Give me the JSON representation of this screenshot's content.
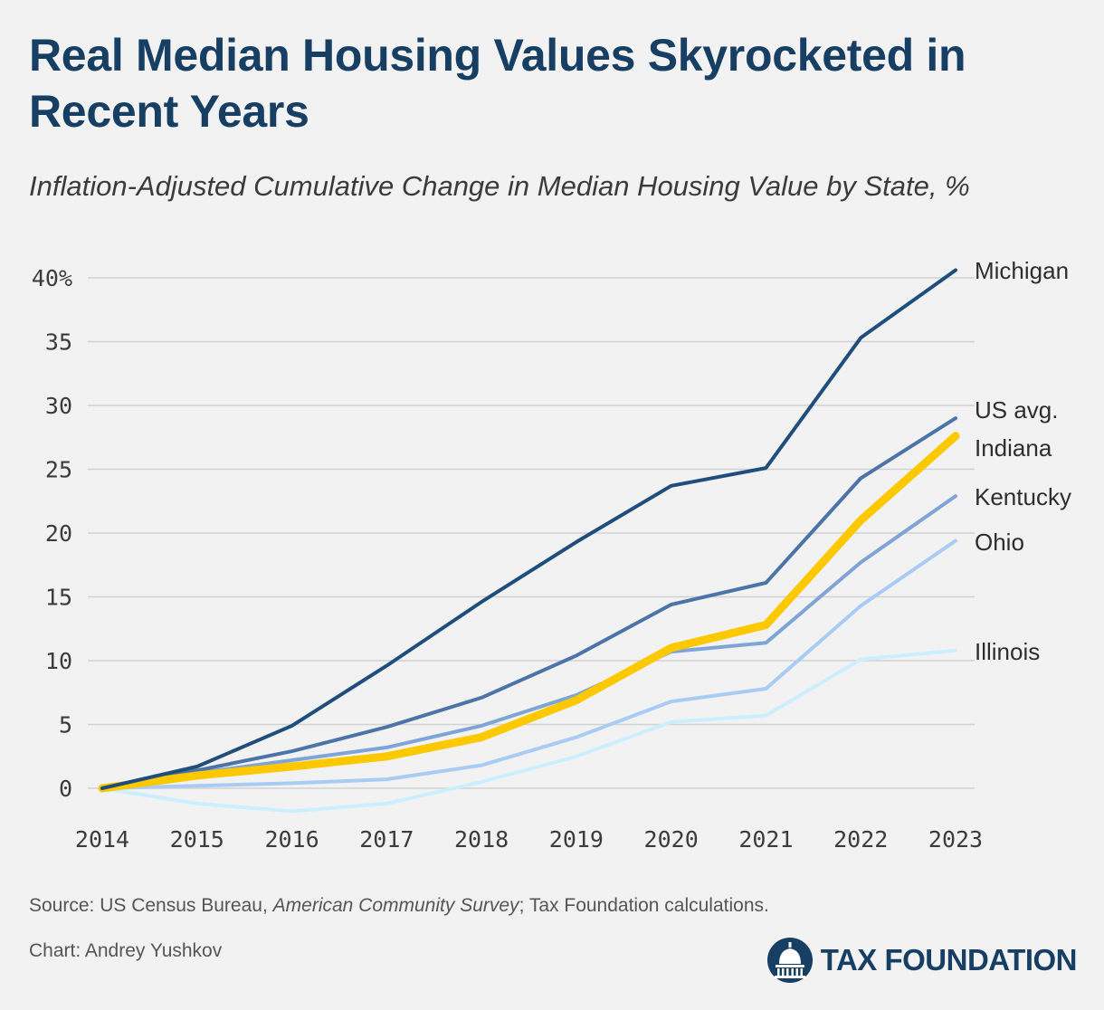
{
  "header": {
    "title": "Real Median Housing Values Skyrocketed in Recent Years",
    "subtitle": "Inflation-Adjusted Cumulative Change in Median Housing Value by State, %"
  },
  "chart_data": {
    "type": "line",
    "title": "Real Median Housing Values Skyrocketed in Recent Years",
    "subtitle": "Inflation-Adjusted Cumulative Change in Median Housing Value by State, %",
    "xlabel": "",
    "ylabel": "",
    "x": [
      2014,
      2015,
      2016,
      2017,
      2018,
      2019,
      2020,
      2021,
      2022,
      2023
    ],
    "ylim": [
      -2,
      40
    ],
    "yticks": [
      0,
      5,
      10,
      15,
      20,
      25,
      30,
      35,
      40
    ],
    "ytick_labels": [
      "0",
      "5",
      "10",
      "15",
      "20",
      "25",
      "30",
      "35",
      "40%"
    ],
    "grid": true,
    "legend": "direct labels at right end of lines",
    "series": [
      {
        "name": "Illinois",
        "color": "#ccefff",
        "width": 4,
        "values": [
          0,
          -1.2,
          -1.8,
          -1.2,
          0.5,
          2.5,
          5.2,
          5.7,
          10.1,
          10.8
        ]
      },
      {
        "name": "Ohio",
        "color": "#a9ccf5",
        "width": 4,
        "values": [
          0,
          0.2,
          0.4,
          0.7,
          1.8,
          4.0,
          6.8,
          7.8,
          14.3,
          19.4
        ]
      },
      {
        "name": "Kentucky",
        "color": "#7fa4d6",
        "width": 4,
        "values": [
          0,
          1.2,
          2.2,
          3.2,
          4.9,
          7.3,
          10.7,
          11.4,
          17.7,
          22.9
        ]
      },
      {
        "name": "US avg.",
        "color": "#4c74a8",
        "width": 4,
        "values": [
          0,
          1.4,
          2.9,
          4.8,
          7.1,
          10.4,
          14.4,
          16.1,
          24.3,
          29.0
        ]
      },
      {
        "name": "Indiana",
        "color": "#fcc800",
        "width": 9,
        "values": [
          0,
          1.0,
          1.7,
          2.5,
          4.0,
          6.9,
          11.0,
          12.8,
          21.0,
          27.6
        ]
      },
      {
        "name": "Michigan",
        "color": "#1f4e7d",
        "width": 4,
        "values": [
          0,
          1.7,
          4.9,
          9.6,
          14.6,
          19.3,
          23.7,
          25.1,
          35.3,
          40.6
        ]
      }
    ]
  },
  "footer": {
    "source_prefix": "Source: US Census Bureau, ",
    "source_italic": "American Community Survey",
    "source_suffix": "; Tax Foundation calculations.",
    "credit": "Chart: Andrey Yushkov",
    "logo_text": "TAX FOUNDATION"
  },
  "colors": {
    "title": "#173f63",
    "background": "#f2f2f2",
    "grid": "#d2d2d2"
  }
}
